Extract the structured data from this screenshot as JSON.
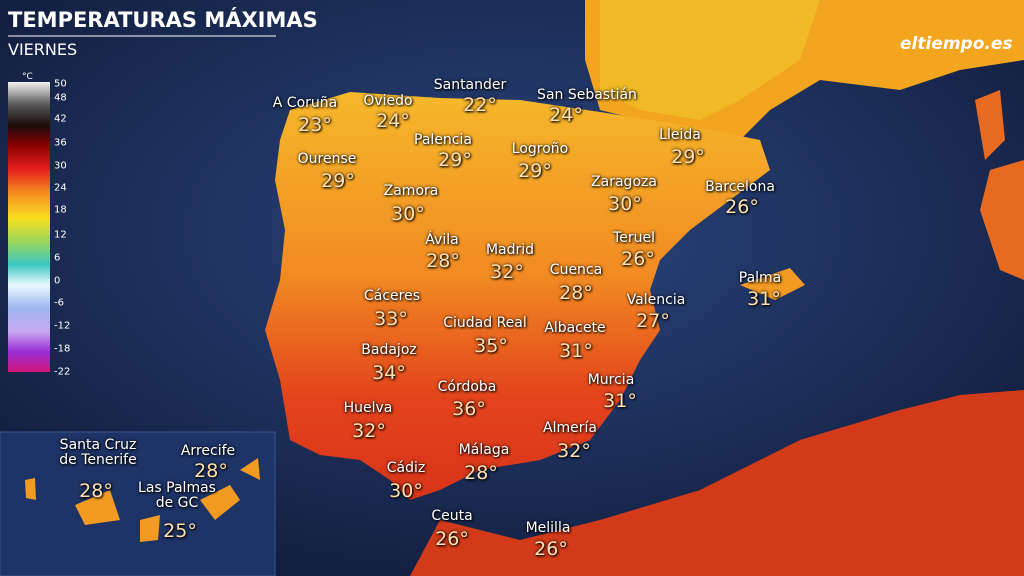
{
  "header": {
    "title": "TEMPERATURAS MÁXIMAS",
    "subtitle": "VIERNES",
    "logo": "eltiempo.es"
  },
  "legend": {
    "unit": "°C",
    "ticks": [
      50,
      48,
      42,
      36,
      30,
      24,
      18,
      12,
      6,
      0,
      -6,
      -12,
      -18,
      -22
    ]
  },
  "cities": [
    {
      "name": "A Coruña",
      "temp": "23°"
    },
    {
      "name": "Oviedo",
      "temp": "24°"
    },
    {
      "name": "Santander",
      "temp": "22°"
    },
    {
      "name": "San Sebastián",
      "temp": "24°"
    },
    {
      "name": "Palencia",
      "temp": "29°"
    },
    {
      "name": "Logroño",
      "temp": "29°"
    },
    {
      "name": "Lleida",
      "temp": "29°"
    },
    {
      "name": "Ourense",
      "temp": "29°"
    },
    {
      "name": "Zamora",
      "temp": "30°"
    },
    {
      "name": "Zaragoza",
      "temp": "30°"
    },
    {
      "name": "Barcelona",
      "temp": "26°"
    },
    {
      "name": "Ávila",
      "temp": "28°"
    },
    {
      "name": "Madrid",
      "temp": "32°"
    },
    {
      "name": "Teruel",
      "temp": "26°"
    },
    {
      "name": "Cuenca",
      "temp": "28°"
    },
    {
      "name": "Palma",
      "temp": "31°"
    },
    {
      "name": "Valencia",
      "temp": "27°"
    },
    {
      "name": "Cáceres",
      "temp": "33°"
    },
    {
      "name": "Ciudad Real",
      "temp": "35°"
    },
    {
      "name": "Albacete",
      "temp": "31°"
    },
    {
      "name": "Badajoz",
      "temp": "34°"
    },
    {
      "name": "Murcia",
      "temp": "31°"
    },
    {
      "name": "Córdoba",
      "temp": "36°"
    },
    {
      "name": "Huelva",
      "temp": "32°"
    },
    {
      "name": "Almería",
      "temp": "32°"
    },
    {
      "name": "Málaga",
      "temp": "28°"
    },
    {
      "name": "Cádiz",
      "temp": "30°"
    },
    {
      "name": "Ceuta",
      "temp": "26°"
    },
    {
      "name": "Melilla",
      "temp": "26°"
    },
    {
      "name": "Santa Cruz\nde Tenerife",
      "temp": "28°"
    },
    {
      "name": "Arrecife",
      "temp": "28°"
    },
    {
      "name": "Las Palmas\nde GC",
      "temp": "25°"
    }
  ]
}
